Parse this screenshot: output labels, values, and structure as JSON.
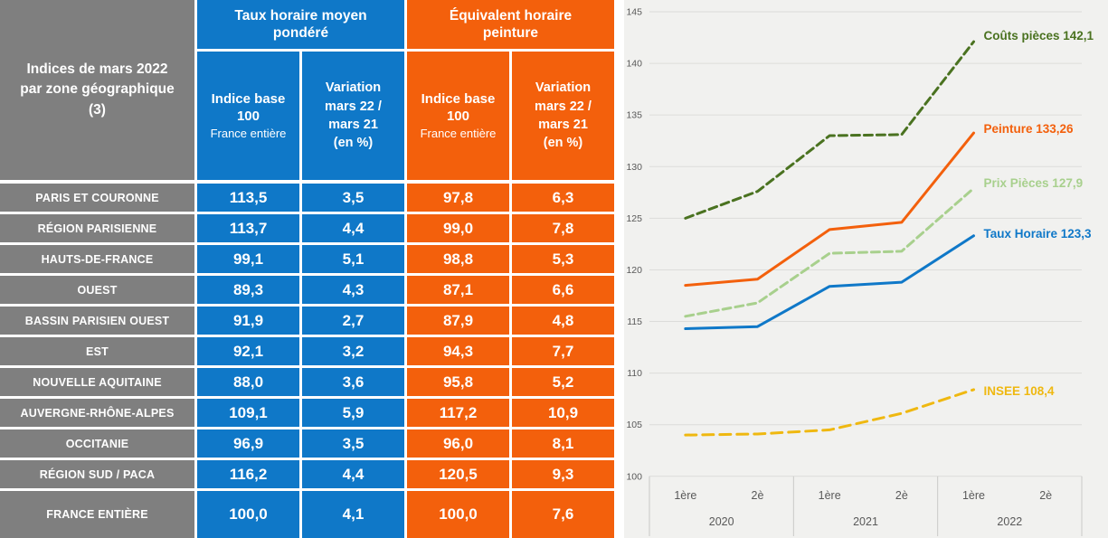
{
  "table": {
    "corner_title": "Indices de mars 2022\npar zone géographique\n(3)",
    "group1_title": "Taux horaire moyen\npondéré",
    "group2_title": "Équivalent horaire\npeinture",
    "sub_indice_title": "Indice base\n100",
    "sub_indice_note": "France entière",
    "sub_variation": "Variation\nmars 22 /\nmars 21\n(en %)",
    "rows": [
      {
        "label": "PARIS ET COURONNE",
        "values": [
          "113,5",
          "3,5",
          "97,8",
          "6,3"
        ]
      },
      {
        "label": "RÉGION PARISIENNE",
        "values": [
          "113,7",
          "4,4",
          "99,0",
          "7,8"
        ]
      },
      {
        "label": "HAUTS-DE-FRANCE",
        "values": [
          "99,1",
          "5,1",
          "98,8",
          "5,3"
        ]
      },
      {
        "label": "OUEST",
        "values": [
          "89,3",
          "4,3",
          "87,1",
          "6,6"
        ]
      },
      {
        "label": "BASSIN PARISIEN OUEST",
        "values": [
          "91,9",
          "2,7",
          "87,9",
          "4,8"
        ]
      },
      {
        "label": "EST",
        "values": [
          "92,1",
          "3,2",
          "94,3",
          "7,7"
        ]
      },
      {
        "label": "NOUVELLE AQUITAINE",
        "values": [
          "88,0",
          "3,6",
          "95,8",
          "5,2"
        ]
      },
      {
        "label": "AUVERGNE-RHÔNE-ALPES",
        "values": [
          "109,1",
          "5,9",
          "117,2",
          "10,9"
        ]
      },
      {
        "label": "OCCITANIE",
        "values": [
          "96,9",
          "3,5",
          "96,0",
          "8,1"
        ]
      },
      {
        "label": "RÉGION SUD / PACA",
        "values": [
          "116,2",
          "4,4",
          "120,5",
          "9,3"
        ]
      },
      {
        "label": "FRANCE ENTIÈRE",
        "values": [
          "100,0",
          "4,1",
          "100,0",
          "7,6"
        ],
        "total": true
      }
    ]
  },
  "chart_data": {
    "type": "line",
    "ylim": [
      100,
      145
    ],
    "yticks": [
      100,
      105,
      110,
      115,
      120,
      125,
      130,
      135,
      140,
      145
    ],
    "grid": true,
    "legend_position": "end-of-line labels",
    "x_groups": [
      {
        "year": "2020",
        "halves": [
          "1ère",
          "2è"
        ]
      },
      {
        "year": "2021",
        "halves": [
          "1ère",
          "2è"
        ]
      },
      {
        "year": "2022",
        "halves": [
          "1ère",
          "2è"
        ]
      }
    ],
    "x_slots": [
      "2020 1ère",
      "2020 2è",
      "2021 1ère",
      "2021 2è",
      "2022 1ère",
      "2022 2è"
    ],
    "series": [
      {
        "name": "Coûts pièces",
        "end_label": "Coûts pièces 142,1",
        "color": "#4a7220",
        "style": "dashed",
        "dash": "9 5",
        "label_dy": -6,
        "values": [
          125.0,
          127.6,
          133.0,
          133.1,
          142.1
        ]
      },
      {
        "name": "Peinture",
        "end_label": "Peinture 133,26",
        "color": "#f3600c",
        "style": "solid",
        "dash": "",
        "label_dy": -4,
        "values": [
          118.5,
          119.1,
          123.9,
          124.6,
          133.26
        ]
      },
      {
        "name": "Prix Pièces",
        "end_label": "Prix Pièces 127,9",
        "color": "#a8d08d",
        "style": "dashed",
        "dash": "9 5",
        "label_dy": -5,
        "values": [
          115.5,
          116.8,
          121.6,
          121.8,
          127.9
        ]
      },
      {
        "name": "Taux Horaire",
        "end_label": "Taux Horaire 123,3",
        "color": "#0f78c8",
        "style": "solid",
        "dash": "",
        "label_dy": -2,
        "values": [
          114.3,
          114.5,
          118.4,
          118.8,
          123.3
        ]
      },
      {
        "name": "INSEE",
        "end_label": "INSEE 108,4",
        "color": "#efb810",
        "style": "dashed",
        "dash": "12 7",
        "label_dy": 2,
        "values": [
          104.0,
          104.1,
          104.5,
          106.1,
          108.4
        ]
      }
    ],
    "colors": {
      "table_blue": "#0f78c8",
      "table_orange": "#f3600c",
      "table_gray": "#7f7f7f",
      "chart_background": "#f1f1ef",
      "gridline": "#dcdcda",
      "axis_text": "#595959"
    }
  }
}
